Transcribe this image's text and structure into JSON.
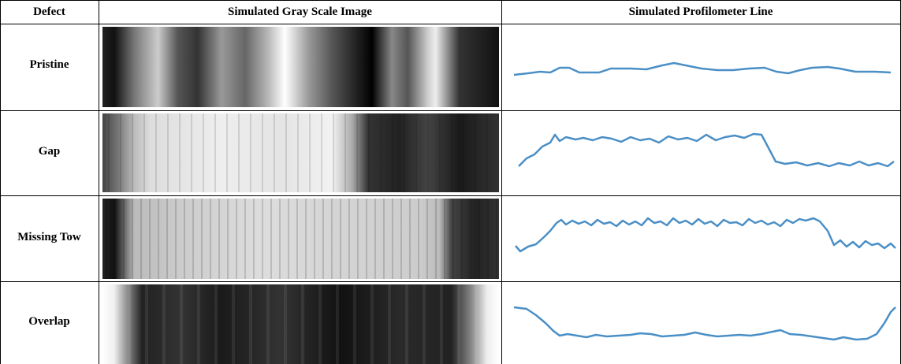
{
  "table": {
    "header": [
      "Defect",
      "Simulated Gray Scale Image",
      "Simulated Profilometer Line"
    ],
    "rows": [
      "Pristine",
      "Gap",
      "Missing Tow",
      "Overlap"
    ]
  }
}
